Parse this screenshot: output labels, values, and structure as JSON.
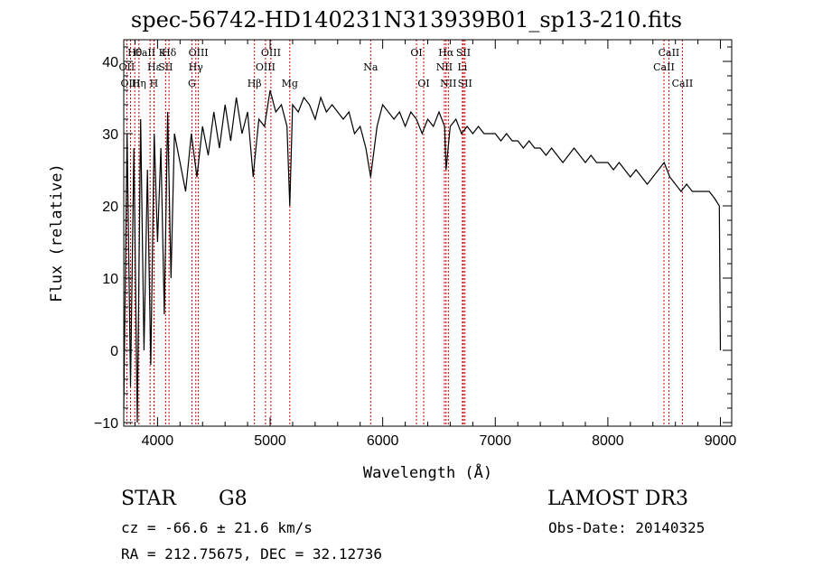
{
  "chart_data": {
    "type": "line",
    "title": "spec-56742-HD140231N313939B01_sp13-210.fits",
    "xlabel": "Wavelength (Å)",
    "ylabel": "Flux (relative)",
    "xlim": [
      3700,
      9100
    ],
    "ylim": [
      -10.5,
      43
    ],
    "xticks": [
      4000,
      5000,
      6000,
      7000,
      8000,
      9000
    ],
    "yticks": [
      -10,
      0,
      10,
      20,
      30,
      40
    ],
    "series": [
      {
        "name": "spectrum",
        "x": [
          3700,
          3730,
          3760,
          3790,
          3820,
          3850,
          3880,
          3910,
          3940,
          3970,
          4000,
          4030,
          4060,
          4090,
          4120,
          4150,
          4200,
          4250,
          4300,
          4350,
          4400,
          4450,
          4500,
          4550,
          4600,
          4650,
          4700,
          4750,
          4800,
          4850,
          4861,
          4900,
          4950,
          5000,
          5050,
          5100,
          5150,
          5175,
          5200,
          5250,
          5300,
          5350,
          5400,
          5450,
          5500,
          5550,
          5600,
          5650,
          5700,
          5750,
          5800,
          5850,
          5893,
          5950,
          6000,
          6050,
          6100,
          6150,
          6200,
          6250,
          6300,
          6350,
          6400,
          6450,
          6500,
          6550,
          6563,
          6600,
          6650,
          6700,
          6750,
          6800,
          6850,
          6900,
          6950,
          7000,
          7050,
          7100,
          7150,
          7200,
          7250,
          7300,
          7350,
          7400,
          7450,
          7500,
          7550,
          7600,
          7650,
          7700,
          7750,
          7800,
          7850,
          7900,
          7950,
          8000,
          8050,
          8100,
          8150,
          8200,
          8250,
          8300,
          8350,
          8400,
          8450,
          8500,
          8550,
          8600,
          8650,
          8700,
          8750,
          8800,
          8850,
          8900,
          8950,
          8990,
          9000
        ],
        "values": [
          -8,
          30,
          -5,
          28,
          -10,
          32,
          0,
          25,
          -2,
          30,
          15,
          28,
          5,
          33,
          10,
          30,
          26,
          22,
          30,
          24,
          31,
          27,
          33,
          28,
          34,
          29,
          35,
          30,
          33,
          24,
          26,
          32,
          31,
          36,
          33,
          34,
          31,
          20,
          34,
          33,
          35,
          34,
          32,
          35,
          33,
          34,
          33,
          32,
          33,
          30,
          31,
          28,
          24,
          31,
          34,
          33,
          32,
          33,
          31,
          33,
          32,
          30,
          32,
          31,
          33,
          31,
          25,
          31,
          32,
          30,
          31,
          30,
          31,
          30,
          30,
          30,
          29,
          30,
          29,
          29,
          28,
          29,
          28,
          28,
          27,
          28,
          27,
          26,
          27,
          28,
          27,
          26,
          27,
          26,
          26,
          26,
          25,
          26,
          25,
          24,
          25,
          24,
          23,
          24,
          25,
          26,
          24,
          23,
          22,
          23,
          22,
          22,
          22,
          22,
          21,
          20,
          0
        ]
      }
    ],
    "lines": [
      {
        "label": "Hθ",
        "x": 3798,
        "row": 1
      },
      {
        "label": "OII",
        "x": 3727,
        "row": 2
      },
      {
        "label": "OIII",
        "x": 3760,
        "row": 3
      },
      {
        "label": "Hη",
        "x": 3835,
        "row": 3
      },
      {
        "label": "CaII K",
        "x": 3934,
        "row": 1
      },
      {
        "label": "Hε",
        "x": 3970,
        "row": 2
      },
      {
        "label": "SII",
        "x": 4072,
        "row": 2
      },
      {
        "label": "Hδ",
        "x": 4102,
        "row": 1
      },
      {
        "label": "H",
        "x": 3968,
        "row": 3
      },
      {
        "label": "OIII",
        "x": 4363,
        "row": 1
      },
      {
        "label": "Hγ",
        "x": 4340,
        "row": 2
      },
      {
        "label": "G",
        "x": 4305,
        "row": 3
      },
      {
        "label": "Hβ",
        "x": 4861,
        "row": 3
      },
      {
        "label": "OIII",
        "x": 4959,
        "row": 2
      },
      {
        "label": "OIII",
        "x": 5007,
        "row": 1
      },
      {
        "label": "Mg",
        "x": 5175,
        "row": 3
      },
      {
        "label": "Na",
        "x": 5893,
        "row": 2
      },
      {
        "label": "OI",
        "x": 6300,
        "row": 1
      },
      {
        "label": "OI",
        "x": 6364,
        "row": 3
      },
      {
        "label": "NII",
        "x": 6548,
        "row": 2
      },
      {
        "label": "Hα",
        "x": 6563,
        "row": 1
      },
      {
        "label": "NII",
        "x": 6583,
        "row": 3
      },
      {
        "label": "SII",
        "x": 6717,
        "row": 1
      },
      {
        "label": "Li",
        "x": 6708,
        "row": 2
      },
      {
        "label": "SII",
        "x": 6731,
        "row": 3
      },
      {
        "label": "CaII",
        "x": 8498,
        "row": 2
      },
      {
        "label": "CaII",
        "x": 8542,
        "row": 1
      },
      {
        "label": "CaII",
        "x": 8662,
        "row": 3
      }
    ]
  },
  "info": {
    "class": "STAR",
    "subclass": "G8",
    "survey": "LAMOST DR3",
    "cz": "cz = -66.6 ± 21.6 km/s",
    "obsdate": "Obs-Date: 20140325",
    "radec": "RA = 212.75675, DEC =  32.12736"
  },
  "colors": {
    "line": "#000000",
    "marker": "#cc0000"
  }
}
